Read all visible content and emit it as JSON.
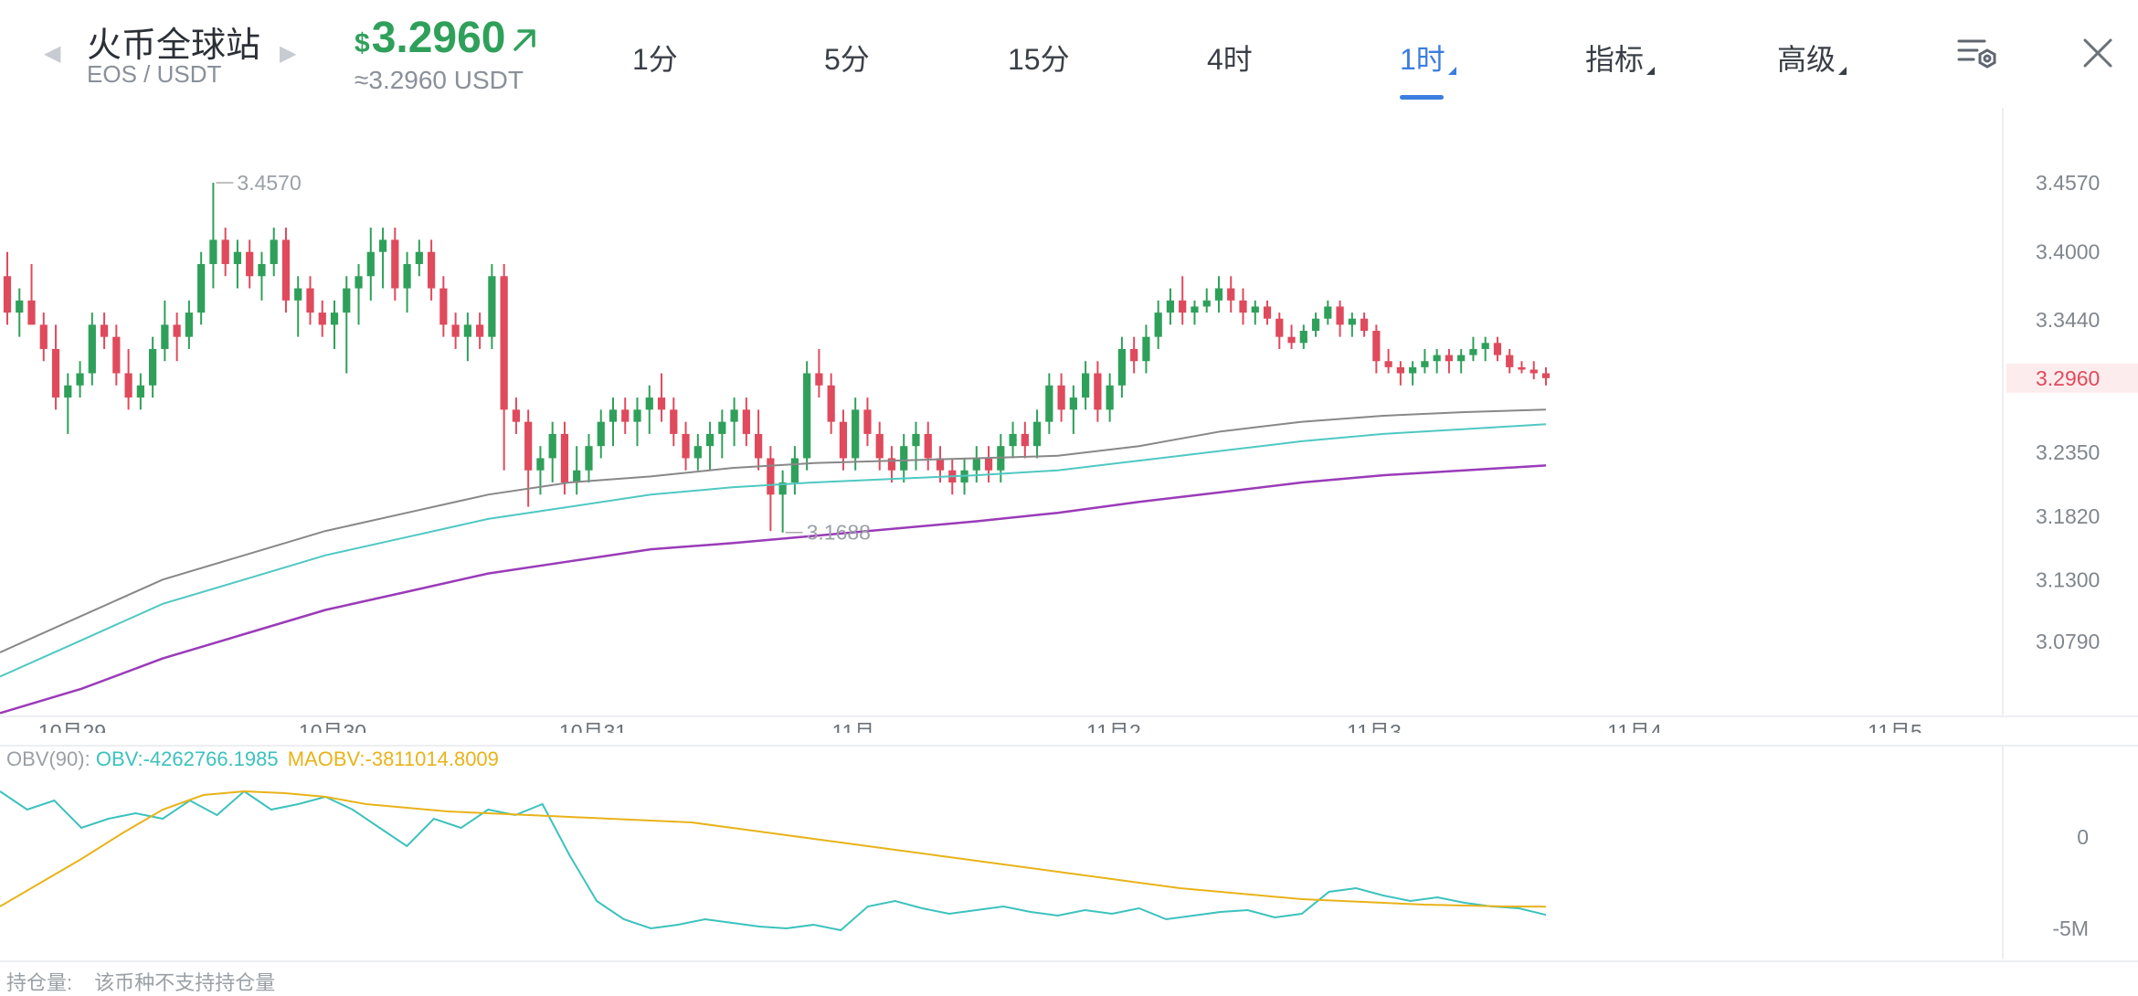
{
  "header": {
    "exchange_name": "火币全球站",
    "pair": "EOS / USDT",
    "currency_symbol": "$",
    "price": "3.2960",
    "price_converted": "≈3.2960 USDT",
    "trend_icon": "up-right-arrow-icon",
    "colors": {
      "up": "#2fa05a",
      "down": "#df4a5c",
      "accent": "#3b7ee0"
    }
  },
  "tabs": [
    {
      "label": "1分",
      "active": false
    },
    {
      "label": "5分",
      "active": false
    },
    {
      "label": "15分",
      "active": false
    },
    {
      "label": "4时",
      "active": false
    },
    {
      "label": "1时",
      "active": true
    },
    {
      "label": "指标",
      "active": false
    },
    {
      "label": "高级",
      "active": false
    }
  ],
  "icons": [
    "left-arrow-icon",
    "right-arrow-icon",
    "chart-settings-icon",
    "close-icon"
  ],
  "obv_legend": {
    "label": "OBV(90):",
    "obv": "OBV:-4262766.1985",
    "maobv": "MAOBV:-3811014.8009"
  },
  "footer": {
    "label": "持仓量:",
    "value": "该币种不支持持仓量"
  },
  "chart_data": [
    {
      "type": "candlestick",
      "y_axis_ticks": [
        "3.4570",
        "3.4000",
        "3.3440",
        "3.2350",
        "3.1820",
        "3.1300",
        "3.0790"
      ],
      "y_axis_values": [
        3.457,
        3.4,
        3.344,
        3.235,
        3.182,
        3.13,
        3.079
      ],
      "current_price_label": "3.2960",
      "current_price": 3.296,
      "x_axis_labels": [
        "10月29",
        "10月30",
        "10月31",
        "11月",
        "11月2",
        "11月3",
        "11月4",
        "11月5"
      ],
      "annotations": [
        {
          "text": "3.4570",
          "value": 3.457,
          "note": "high"
        },
        {
          "text": "3.1688",
          "value": 3.1688,
          "note": "low"
        }
      ],
      "grid": false,
      "ma_series": [
        {
          "color": "#888888",
          "values": [
            3.07,
            3.1,
            3.13,
            3.15,
            3.17,
            3.185,
            3.2,
            3.21,
            3.215,
            3.222,
            3.226,
            3.228,
            3.23,
            3.232,
            3.24,
            3.252,
            3.26,
            3.265,
            3.268,
            3.27
          ]
        },
        {
          "color": "#4fc8c2",
          "values": [
            3.05,
            3.08,
            3.11,
            3.13,
            3.15,
            3.165,
            3.18,
            3.19,
            3.2,
            3.206,
            3.21,
            3.213,
            3.216,
            3.22,
            3.228,
            3.236,
            3.244,
            3.25,
            3.254,
            3.258
          ]
        },
        {
          "color": "#9a3bb8",
          "values": [
            3.02,
            3.04,
            3.065,
            3.085,
            3.105,
            3.12,
            3.135,
            3.145,
            3.155,
            3.16,
            3.166,
            3.172,
            3.178,
            3.185,
            3.194,
            3.202,
            3.21,
            3.216,
            3.22,
            3.224
          ]
        }
      ],
      "candles": [
        [
          3.38,
          3.4,
          3.34,
          3.35
        ],
        [
          3.35,
          3.37,
          3.33,
          3.36
        ],
        [
          3.36,
          3.39,
          3.34,
          3.34
        ],
        [
          3.34,
          3.35,
          3.31,
          3.32
        ],
        [
          3.32,
          3.34,
          3.27,
          3.28
        ],
        [
          3.28,
          3.3,
          3.25,
          3.29
        ],
        [
          3.29,
          3.31,
          3.28,
          3.3
        ],
        [
          3.3,
          3.35,
          3.29,
          3.34
        ],
        [
          3.34,
          3.35,
          3.32,
          3.33
        ],
        [
          3.33,
          3.34,
          3.29,
          3.3
        ],
        [
          3.3,
          3.32,
          3.27,
          3.28
        ],
        [
          3.28,
          3.3,
          3.27,
          3.29
        ],
        [
          3.29,
          3.33,
          3.28,
          3.32
        ],
        [
          3.32,
          3.36,
          3.31,
          3.34
        ],
        [
          3.34,
          3.35,
          3.31,
          3.33
        ],
        [
          3.33,
          3.36,
          3.32,
          3.35
        ],
        [
          3.35,
          3.4,
          3.34,
          3.39
        ],
        [
          3.39,
          3.457,
          3.37,
          3.41
        ],
        [
          3.41,
          3.42,
          3.38,
          3.39
        ],
        [
          3.39,
          3.41,
          3.37,
          3.4
        ],
        [
          3.4,
          3.41,
          3.37,
          3.38
        ],
        [
          3.38,
          3.4,
          3.36,
          3.39
        ],
        [
          3.39,
          3.42,
          3.38,
          3.41
        ],
        [
          3.41,
          3.42,
          3.35,
          3.36
        ],
        [
          3.36,
          3.38,
          3.33,
          3.37
        ],
        [
          3.37,
          3.38,
          3.34,
          3.35
        ],
        [
          3.35,
          3.36,
          3.33,
          3.34
        ],
        [
          3.34,
          3.36,
          3.32,
          3.35
        ],
        [
          3.35,
          3.38,
          3.3,
          3.37
        ],
        [
          3.37,
          3.39,
          3.34,
          3.38
        ],
        [
          3.38,
          3.42,
          3.36,
          3.4
        ],
        [
          3.4,
          3.42,
          3.37,
          3.41
        ],
        [
          3.41,
          3.42,
          3.36,
          3.37
        ],
        [
          3.37,
          3.4,
          3.35,
          3.39
        ],
        [
          3.39,
          3.41,
          3.38,
          3.4
        ],
        [
          3.4,
          3.41,
          3.36,
          3.37
        ],
        [
          3.37,
          3.38,
          3.33,
          3.34
        ],
        [
          3.34,
          3.35,
          3.32,
          3.33
        ],
        [
          3.33,
          3.35,
          3.31,
          3.34
        ],
        [
          3.34,
          3.35,
          3.32,
          3.33
        ],
        [
          3.33,
          3.39,
          3.32,
          3.38
        ],
        [
          3.38,
          3.39,
          3.22,
          3.27
        ],
        [
          3.27,
          3.28,
          3.25,
          3.26
        ],
        [
          3.26,
          3.27,
          3.19,
          3.22
        ],
        [
          3.22,
          3.24,
          3.2,
          3.23
        ],
        [
          3.23,
          3.26,
          3.21,
          3.25
        ],
        [
          3.25,
          3.26,
          3.2,
          3.21
        ],
        [
          3.21,
          3.24,
          3.2,
          3.22
        ],
        [
          3.22,
          3.25,
          3.21,
          3.24
        ],
        [
          3.24,
          3.27,
          3.23,
          3.26
        ],
        [
          3.26,
          3.28,
          3.24,
          3.27
        ],
        [
          3.27,
          3.28,
          3.25,
          3.26
        ],
        [
          3.26,
          3.28,
          3.24,
          3.27
        ],
        [
          3.27,
          3.29,
          3.25,
          3.28
        ],
        [
          3.28,
          3.3,
          3.26,
          3.27
        ],
        [
          3.27,
          3.28,
          3.24,
          3.25
        ],
        [
          3.25,
          3.26,
          3.22,
          3.23
        ],
        [
          3.23,
          3.25,
          3.22,
          3.24
        ],
        [
          3.24,
          3.26,
          3.22,
          3.25
        ],
        [
          3.25,
          3.27,
          3.23,
          3.26
        ],
        [
          3.26,
          3.28,
          3.24,
          3.27
        ],
        [
          3.27,
          3.28,
          3.24,
          3.25
        ],
        [
          3.25,
          3.27,
          3.22,
          3.23
        ],
        [
          3.23,
          3.24,
          3.17,
          3.2
        ],
        [
          3.2,
          3.22,
          3.1688,
          3.21
        ],
        [
          3.21,
          3.24,
          3.2,
          3.23
        ],
        [
          3.23,
          3.31,
          3.22,
          3.3
        ],
        [
          3.3,
          3.32,
          3.28,
          3.29
        ],
        [
          3.29,
          3.3,
          3.25,
          3.26
        ],
        [
          3.26,
          3.27,
          3.22,
          3.23
        ],
        [
          3.23,
          3.28,
          3.22,
          3.27
        ],
        [
          3.27,
          3.28,
          3.24,
          3.25
        ],
        [
          3.25,
          3.26,
          3.22,
          3.23
        ],
        [
          3.23,
          3.24,
          3.21,
          3.22
        ],
        [
          3.22,
          3.25,
          3.21,
          3.24
        ],
        [
          3.24,
          3.26,
          3.22,
          3.25
        ],
        [
          3.25,
          3.26,
          3.22,
          3.23
        ],
        [
          3.23,
          3.24,
          3.21,
          3.22
        ],
        [
          3.22,
          3.23,
          3.2,
          3.21
        ],
        [
          3.21,
          3.23,
          3.2,
          3.22
        ],
        [
          3.22,
          3.24,
          3.21,
          3.23
        ],
        [
          3.23,
          3.24,
          3.21,
          3.22
        ],
        [
          3.22,
          3.25,
          3.21,
          3.24
        ],
        [
          3.24,
          3.26,
          3.23,
          3.25
        ],
        [
          3.25,
          3.26,
          3.23,
          3.24
        ],
        [
          3.24,
          3.27,
          3.23,
          3.26
        ],
        [
          3.26,
          3.3,
          3.25,
          3.29
        ],
        [
          3.29,
          3.3,
          3.26,
          3.27
        ],
        [
          3.27,
          3.29,
          3.25,
          3.28
        ],
        [
          3.28,
          3.31,
          3.27,
          3.3
        ],
        [
          3.3,
          3.31,
          3.26,
          3.27
        ],
        [
          3.27,
          3.3,
          3.26,
          3.29
        ],
        [
          3.29,
          3.33,
          3.28,
          3.32
        ],
        [
          3.32,
          3.33,
          3.3,
          3.31
        ],
        [
          3.31,
          3.34,
          3.3,
          3.33
        ],
        [
          3.33,
          3.36,
          3.32,
          3.35
        ],
        [
          3.35,
          3.37,
          3.34,
          3.36
        ],
        [
          3.36,
          3.38,
          3.34,
          3.35
        ],
        [
          3.35,
          3.36,
          3.34,
          3.355
        ],
        [
          3.355,
          3.37,
          3.35,
          3.36
        ],
        [
          3.36,
          3.38,
          3.35,
          3.37
        ],
        [
          3.37,
          3.38,
          3.35,
          3.36
        ],
        [
          3.36,
          3.37,
          3.34,
          3.35
        ],
        [
          3.35,
          3.36,
          3.34,
          3.355
        ],
        [
          3.355,
          3.36,
          3.34,
          3.345
        ],
        [
          3.345,
          3.35,
          3.32,
          3.33
        ],
        [
          3.33,
          3.34,
          3.32,
          3.325
        ],
        [
          3.325,
          3.34,
          3.32,
          3.335
        ],
        [
          3.335,
          3.35,
          3.33,
          3.345
        ],
        [
          3.345,
          3.36,
          3.34,
          3.355
        ],
        [
          3.355,
          3.36,
          3.33,
          3.34
        ],
        [
          3.34,
          3.35,
          3.33,
          3.345
        ],
        [
          3.345,
          3.35,
          3.33,
          3.335
        ],
        [
          3.335,
          3.34,
          3.3,
          3.31
        ],
        [
          3.31,
          3.32,
          3.3,
          3.305
        ],
        [
          3.305,
          3.31,
          3.29,
          3.3
        ],
        [
          3.3,
          3.31,
          3.29,
          3.305
        ],
        [
          3.305,
          3.32,
          3.3,
          3.31
        ],
        [
          3.31,
          3.32,
          3.3,
          3.315
        ],
        [
          3.315,
          3.32,
          3.3,
          3.31
        ],
        [
          3.31,
          3.32,
          3.3,
          3.315
        ],
        [
          3.315,
          3.33,
          3.31,
          3.32
        ],
        [
          3.32,
          3.33,
          3.31,
          3.325
        ],
        [
          3.325,
          3.33,
          3.31,
          3.315
        ],
        [
          3.315,
          3.32,
          3.3,
          3.305
        ],
        [
          3.305,
          3.31,
          3.3,
          3.303
        ],
        [
          3.303,
          3.31,
          3.295,
          3.3
        ],
        [
          3.3,
          3.305,
          3.29,
          3.296
        ]
      ]
    },
    {
      "type": "line",
      "y_axis_ticks": [
        "0",
        "-5M"
      ],
      "y_axis_values": [
        0,
        -5000000
      ],
      "series": [
        {
          "name": "OBV",
          "color": "#3cc2bd",
          "values": [
            2.5,
            1.5,
            2.0,
            0.5,
            1.0,
            1.3,
            1.0,
            2.0,
            1.2,
            2.5,
            1.5,
            1.8,
            2.2,
            1.5,
            0.5,
            -0.5,
            1.0,
            0.5,
            1.5,
            1.2,
            1.8,
            -1.0,
            -3.5,
            -4.5,
            -5.0,
            -4.8,
            -4.5,
            -4.7,
            -4.9,
            -5.0,
            -4.8,
            -5.1,
            -3.8,
            -3.5,
            -3.9,
            -4.2,
            -4.0,
            -3.8,
            -4.1,
            -4.3,
            -4.0,
            -4.2,
            -3.9,
            -4.5,
            -4.3,
            -4.1,
            -4.0,
            -4.4,
            -4.2,
            -3.0,
            -2.8,
            -3.2,
            -3.5,
            -3.3,
            -3.6,
            -3.8,
            -3.9,
            -4.26
          ]
        },
        {
          "name": "MAOBV",
          "color": "#e8b31a",
          "values": [
            -3.8,
            -2.5,
            -1.2,
            0.2,
            1.5,
            2.3,
            2.5,
            2.4,
            2.2,
            1.8,
            1.6,
            1.4,
            1.3,
            1.2,
            1.1,
            1.0,
            0.9,
            0.8,
            0.5,
            0.2,
            -0.1,
            -0.4,
            -0.7,
            -1.0,
            -1.3,
            -1.6,
            -1.9,
            -2.2,
            -2.5,
            -2.8,
            -3.0,
            -3.2,
            -3.4,
            -3.5,
            -3.6,
            -3.7,
            -3.75,
            -3.8,
            -3.81
          ]
        }
      ]
    }
  ]
}
